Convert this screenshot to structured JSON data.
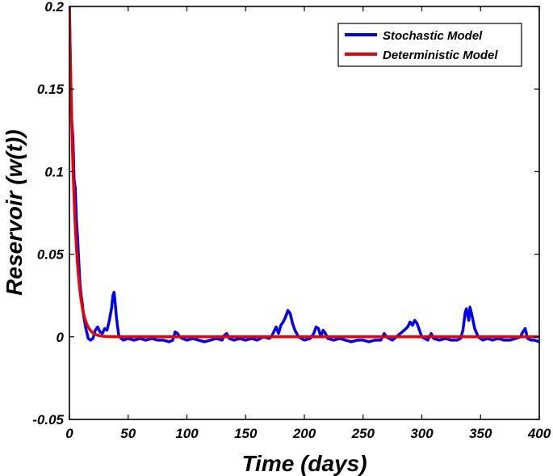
{
  "chart_data": {
    "type": "line",
    "title": "",
    "xlabel": "Time (days)",
    "ylabel": "Reservoir (w(t))",
    "xlim": [
      0,
      400
    ],
    "ylim": [
      -0.05,
      0.2
    ],
    "xticks": [
      0,
      50,
      100,
      150,
      200,
      250,
      300,
      350,
      400
    ],
    "xtick_labels": [
      "0",
      "50",
      "100",
      "150",
      "200",
      "250",
      "300",
      "350",
      "400"
    ],
    "yticks": [
      -0.05,
      0,
      0.05,
      0.1,
      0.15,
      0.2
    ],
    "ytick_labels": [
      "-0.05",
      "0",
      "0.05",
      "0.1",
      "0.15",
      "0.2"
    ],
    "grid": false,
    "legend_position": "top-right",
    "series": [
      {
        "name": "Stochastic Model",
        "color": "#0000ee",
        "x": [
          0,
          1,
          2,
          3,
          4,
          5,
          6,
          7,
          8,
          9,
          10,
          11,
          12,
          13,
          14,
          15,
          16,
          18,
          20,
          22,
          24,
          26,
          28,
          30,
          32,
          34,
          35,
          36,
          37,
          38,
          39,
          40,
          41,
          42,
          44,
          46,
          50,
          55,
          60,
          65,
          70,
          75,
          80,
          85,
          88,
          90,
          92,
          94,
          96,
          100,
          105,
          110,
          115,
          120,
          125,
          130,
          132,
          134,
          136,
          140,
          145,
          150,
          155,
          160,
          165,
          170,
          172,
          174,
          176,
          178,
          180,
          182,
          184,
          186,
          188,
          190,
          192,
          195,
          200,
          205,
          208,
          210,
          212,
          214,
          216,
          218,
          220,
          225,
          230,
          235,
          240,
          245,
          250,
          255,
          260,
          265,
          268,
          270,
          272,
          275,
          280,
          285,
          288,
          290,
          292,
          294,
          296,
          298,
          300,
          305,
          308,
          310,
          315,
          320,
          325,
          330,
          333,
          335,
          337,
          338,
          340,
          341,
          343,
          345,
          348,
          352,
          356,
          360,
          365,
          370,
          375,
          380,
          384,
          386,
          388,
          390,
          393,
          396,
          400
        ],
        "y": [
          0.2,
          0.16,
          0.13,
          0.12,
          0.095,
          0.09,
          0.07,
          0.06,
          0.045,
          0.032,
          0.025,
          0.02,
          0.013,
          0.009,
          0.005,
          0.002,
          -0.001,
          -0.002,
          -0.001,
          0.004,
          0.006,
          0.003,
          0.002,
          0.005,
          0.004,
          0.01,
          0.014,
          0.018,
          0.025,
          0.027,
          0.02,
          0.012,
          0.006,
          0.001,
          -0.001,
          -0.002,
          -0.001,
          -0.002,
          -0.001,
          -0.002,
          -0.001,
          -0.002,
          -0.002,
          -0.003,
          -0.002,
          0.003,
          0.002,
          0.0,
          -0.001,
          -0.002,
          -0.001,
          -0.002,
          -0.003,
          -0.002,
          -0.001,
          -0.002,
          0.001,
          0.002,
          -0.001,
          -0.002,
          -0.001,
          -0.002,
          -0.001,
          -0.002,
          0.0,
          -0.001,
          0.0,
          0.003,
          0.006,
          0.002,
          0.007,
          0.009,
          0.012,
          0.016,
          0.014,
          0.008,
          0.004,
          0.0,
          -0.002,
          -0.001,
          0.002,
          0.006,
          0.005,
          0.0,
          0.004,
          0.002,
          -0.001,
          -0.002,
          -0.001,
          -0.002,
          -0.003,
          -0.002,
          -0.002,
          -0.003,
          -0.002,
          -0.002,
          0.002,
          0.0,
          -0.001,
          -0.002,
          0.001,
          0.004,
          0.006,
          0.009,
          0.007,
          0.01,
          0.008,
          0.004,
          0.0,
          -0.002,
          0.002,
          -0.001,
          -0.002,
          -0.001,
          -0.002,
          -0.002,
          -0.001,
          0.004,
          0.015,
          0.017,
          0.01,
          0.018,
          0.012,
          0.005,
          0.0,
          -0.002,
          -0.001,
          -0.002,
          -0.001,
          -0.002,
          -0.002,
          -0.001,
          0.0,
          0.003,
          0.005,
          -0.001,
          -0.002,
          -0.002,
          -0.003
        ]
      },
      {
        "name": "Deterministic Model",
        "color": "#ee0000",
        "model": "0.2 * exp(-0.22 * t)",
        "y0": 0.2,
        "decay_rate": 0.22,
        "sample_step": 0.5
      }
    ]
  }
}
